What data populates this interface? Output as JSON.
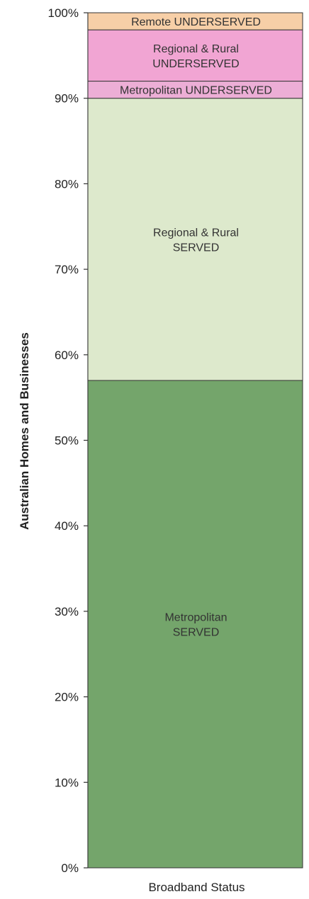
{
  "chart_data": {
    "type": "bar",
    "stacked": true,
    "percent": true,
    "categories": [
      "Broadband Status"
    ],
    "xlabel": "Broadband Status",
    "ylabel": "Australian Homes and Businesses",
    "ylim": [
      0,
      100
    ],
    "yticks": [
      0,
      10,
      20,
      30,
      40,
      50,
      60,
      70,
      80,
      90,
      100
    ],
    "ytick_labels": [
      "0%",
      "10%",
      "20%",
      "30%",
      "40%",
      "50%",
      "60%",
      "70%",
      "80%",
      "90%",
      "100%"
    ],
    "grid": false,
    "legend": "none",
    "series": [
      {
        "name": "Metropolitan SERVED",
        "label_lines": [
          "Metropolitan",
          "SERVED"
        ],
        "values": [
          57
        ],
        "color": "#74a56b"
      },
      {
        "name": "Regional & Rural SERVED",
        "label_lines": [
          "Regional & Rural",
          "SERVED"
        ],
        "values": [
          33
        ],
        "color": "#dde9cc"
      },
      {
        "name": "Metropolitan UNDERSERVED",
        "label_lines": [
          "Metropolitan UNDERSERVED"
        ],
        "values": [
          2
        ],
        "color": "#ecaed6"
      },
      {
        "name": "Regional & Rural UNDERSERVED",
        "label_lines": [
          "Regional & Rural",
          "UNDERSERVED"
        ],
        "values": [
          6
        ],
        "color": "#f1a5d3"
      },
      {
        "name": "Remote UNDERSERVED",
        "label_lines": [
          "Remote UNDERSERVED"
        ],
        "values": [
          2
        ],
        "color": "#f7cfa7"
      }
    ]
  }
}
